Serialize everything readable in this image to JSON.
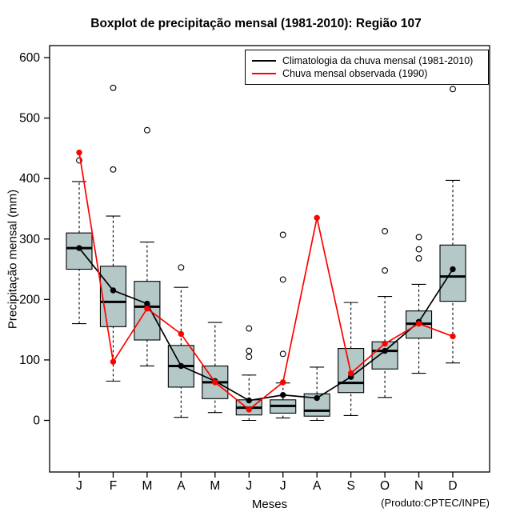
{
  "title": "Boxplot de precipitação mensal (1981-2010): Região 107",
  "axes": {
    "xlabel": "Meses",
    "ylabel": "Precipitação mensal (mm)"
  },
  "credit": "(Produto:CPTEC/INPE)",
  "legend": [
    {
      "label": "Climatologia da chuva mensal (1981-2010)",
      "color": "#000000"
    },
    {
      "label": "Chuva mensal observada (1990)",
      "color": "#ff0000"
    }
  ],
  "chart_data": {
    "type": "boxplot",
    "title": "Boxplot de precipitação mensal (1981-2010): Região 107",
    "xlabel": "Meses",
    "ylabel": "Precipitação mensal (mm)",
    "categories": [
      "J",
      "F",
      "M",
      "A",
      "M",
      "J",
      "J",
      "A",
      "S",
      "O",
      "N",
      "D"
    ],
    "ylim": [
      0,
      600
    ],
    "yticks": [
      0,
      100,
      200,
      300,
      400,
      500,
      600
    ],
    "grid": false,
    "legend_position": "top-right-inside",
    "box_fill": "#b4c8c8",
    "boxes": [
      {
        "low": 160,
        "q1": 250,
        "median": 285,
        "q3": 310,
        "high": 395,
        "outliers": [
          430
        ]
      },
      {
        "low": 65,
        "q1": 155,
        "median": 196,
        "q3": 255,
        "high": 338,
        "outliers": [
          550,
          415
        ]
      },
      {
        "low": 90,
        "q1": 133,
        "median": 188,
        "q3": 230,
        "high": 295,
        "outliers": [
          480
        ]
      },
      {
        "low": 5,
        "q1": 55,
        "median": 90,
        "q3": 124,
        "high": 220,
        "outliers": [
          253
        ]
      },
      {
        "low": 13,
        "q1": 36,
        "median": 63,
        "q3": 90,
        "high": 162,
        "outliers": []
      },
      {
        "low": 0,
        "q1": 9,
        "median": 21,
        "q3": 34,
        "high": 75,
        "outliers": [
          152,
          115,
          105
        ]
      },
      {
        "low": 4,
        "q1": 12,
        "median": 24,
        "q3": 34,
        "high": 62,
        "outliers": [
          307,
          233,
          110
        ]
      },
      {
        "low": 0,
        "q1": 7,
        "median": 16,
        "q3": 44,
        "high": 88,
        "outliers": []
      },
      {
        "low": 8,
        "q1": 46,
        "median": 62,
        "q3": 119,
        "high": 195,
        "outliers": []
      },
      {
        "low": 38,
        "q1": 85,
        "median": 115,
        "q3": 130,
        "high": 205,
        "outliers": [
          313,
          248
        ]
      },
      {
        "low": 78,
        "q1": 136,
        "median": 160,
        "q3": 181,
        "high": 225,
        "outliers": [
          303,
          283,
          268
        ]
      },
      {
        "low": 95,
        "q1": 197,
        "median": 238,
        "q3": 290,
        "high": 397,
        "outliers": [
          548
        ]
      }
    ],
    "series": [
      {
        "name": "Climatologia da chuva mensal (1981-2010)",
        "color": "#000000",
        "values": [
          285,
          215,
          193,
          90,
          65,
          33,
          42,
          37,
          72,
          115,
          163,
          250
        ]
      },
      {
        "name": "Chuva mensal observada (1990)",
        "color": "#ff0000",
        "values": [
          443,
          97,
          185,
          143,
          63,
          18,
          63,
          335,
          78,
          127,
          160,
          139
        ]
      }
    ]
  }
}
